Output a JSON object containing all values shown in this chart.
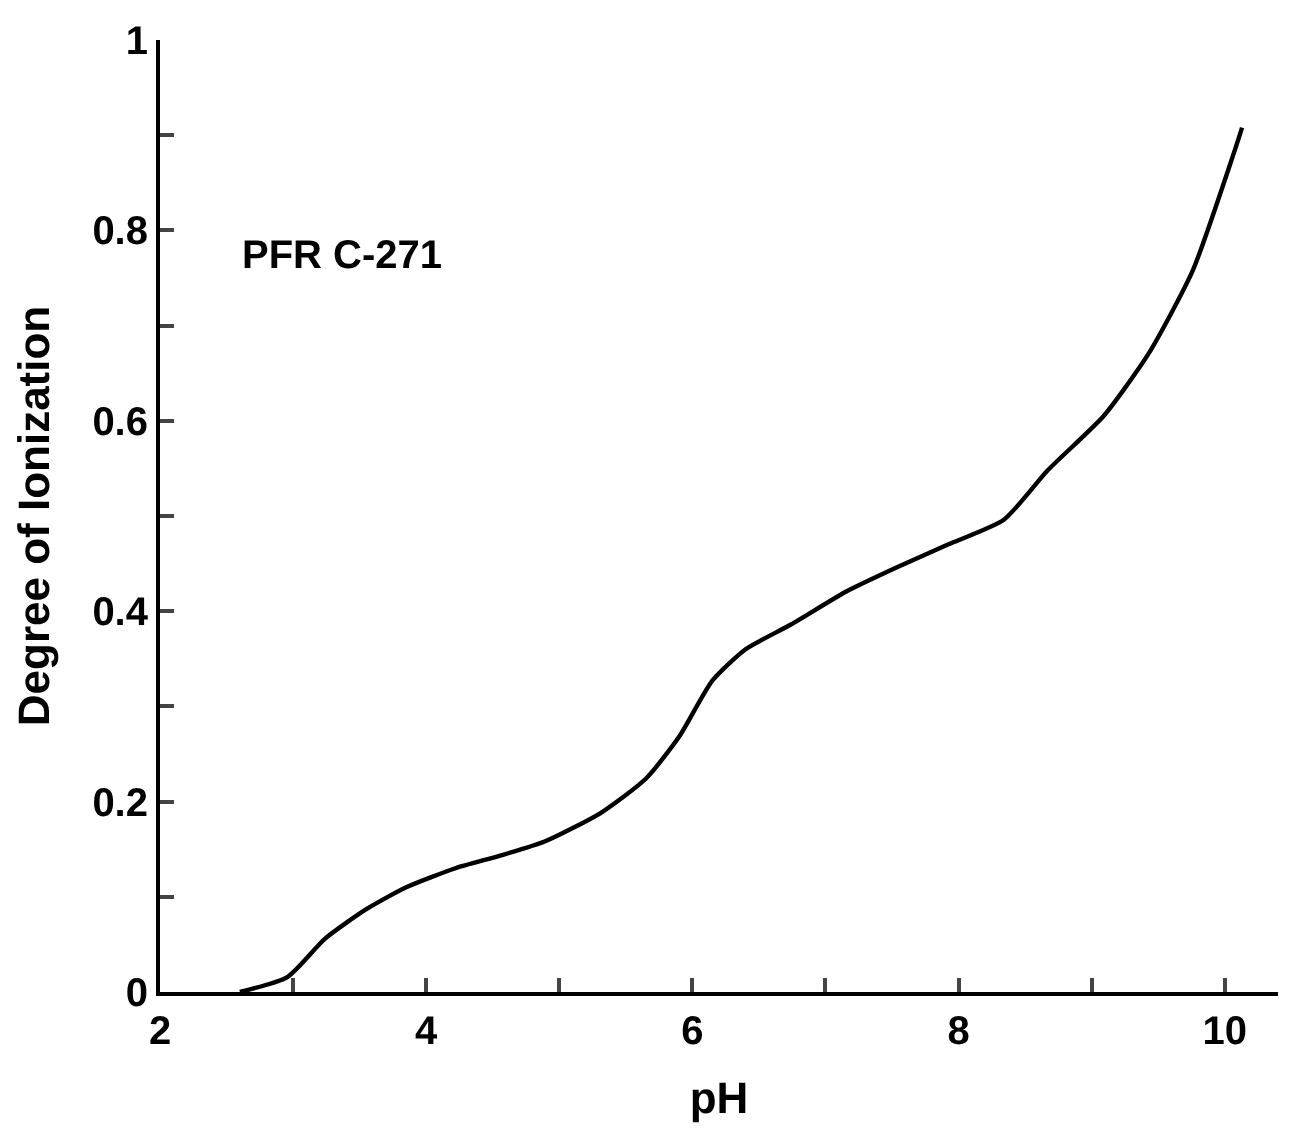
{
  "chart_data": {
    "type": "line",
    "xlabel": "pH",
    "ylabel": "Degree of Ionization",
    "annotations": [
      "PFR C-271"
    ],
    "series": [
      {
        "color": "#000000",
        "x": [
          2.6,
          2.96,
          3.24,
          3.55,
          3.85,
          4.22,
          4.55,
          4.89,
          5.31,
          5.65,
          5.9,
          6.15,
          6.4,
          6.74,
          7.16,
          7.55,
          7.92,
          8.34,
          8.67,
          9.09,
          9.43,
          9.76,
          10.07,
          10.13
        ],
        "values": [
          0,
          0.016,
          0.056,
          0.087,
          0.11,
          0.13,
          0.143,
          0.158,
          0.188,
          0.224,
          0.268,
          0.327,
          0.36,
          0.386,
          0.421,
          0.447,
          0.47,
          0.496,
          0.548,
          0.605,
          0.671,
          0.758,
          0.882,
          0.908
        ]
      }
    ],
    "xlim": [
      2,
      10.4
    ],
    "ylim": [
      0,
      1
    ],
    "xticks": [
      2,
      {
        "value": 3,
        "label": null
      },
      4,
      {
        "value": 5,
        "label": null
      },
      6,
      {
        "value": 7,
        "label": null
      },
      8,
      {
        "value": 9,
        "label": null
      },
      10
    ],
    "yticks": [
      0,
      {
        "value": 0.1,
        "label": null
      },
      0.2,
      {
        "value": 0.3,
        "label": null
      },
      0.4,
      {
        "value": 0.5,
        "label": null
      },
      0.6,
      {
        "value": 0.7,
        "label": null
      },
      0.8,
      {
        "value": 0.9,
        "label": null
      },
      1
    ],
    "legend": false,
    "marker": "none",
    "line_style": "solid"
  }
}
